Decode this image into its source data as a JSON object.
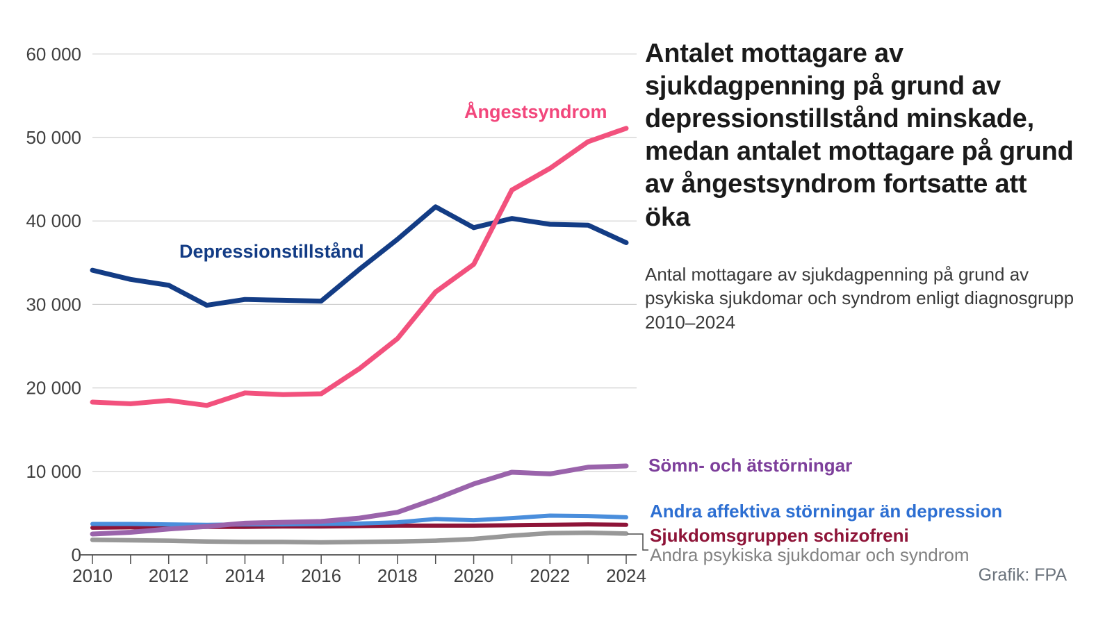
{
  "header": {
    "title": "Antalet mottagare av sjukdagpenning på grund av depressionstillstånd minskade, medan antalet mottagare på grund av ångestsyndrom fortsatte att öka",
    "subtitle": "Antal mottagare av sjukdagpenning på grund av psykiska sjukdomar och syndrom enligt diagnosgrupp 2010–2024"
  },
  "credit": "Grafik: FPA",
  "colors": {
    "grid": "#cfcfcf",
    "axis": "#4d4d4d",
    "tick_text": "#3f3f3f",
    "connector": "#4a4a4a",
    "background": "#ffffff"
  },
  "chart_data": {
    "type": "line",
    "x": [
      2010,
      2011,
      2012,
      2013,
      2014,
      2015,
      2016,
      2017,
      2018,
      2019,
      2020,
      2021,
      2022,
      2023,
      2024
    ],
    "xtick_labels": [
      "2010",
      "2012",
      "2014",
      "2016",
      "2018",
      "2020",
      "2022",
      "2024"
    ],
    "yticks": [
      {
        "value": 60000,
        "label": "60 000"
      },
      {
        "value": 50000,
        "label": "50 000"
      },
      {
        "value": 40000,
        "label": "40 000"
      },
      {
        "value": 30000,
        "label": "30 000"
      },
      {
        "value": 20000,
        "label": "20 000"
      },
      {
        "value": 10000,
        "label": "10 000"
      },
      {
        "value": 0,
        "label": "0"
      }
    ],
    "ylim": [
      0,
      60000
    ],
    "grid": true,
    "legend_position": "right",
    "series": [
      {
        "id": "psykiska",
        "name": "Andra psykiska sjukdomar och syndrom",
        "color": "#989898",
        "label_color": "#828282",
        "width": 6.5,
        "values": [
          1800,
          1750,
          1700,
          1600,
          1550,
          1550,
          1500,
          1550,
          1600,
          1700,
          1900,
          2300,
          2600,
          2650,
          2550
        ]
      },
      {
        "id": "schizofreni",
        "name": "Sjukdomsgruppen schizofreni",
        "color": "#8e1438",
        "label_color": "#8e1438",
        "width": 6,
        "values": [
          3250,
          3300,
          3300,
          3350,
          3350,
          3400,
          3400,
          3450,
          3500,
          3500,
          3500,
          3550,
          3600,
          3650,
          3600
        ]
      },
      {
        "id": "affektiva",
        "name": "Andra affektiva störningar än depression",
        "color": "#4a8edc",
        "label_color": "#2d6fd2",
        "width": 6,
        "values": [
          3700,
          3700,
          3650,
          3600,
          3650,
          3650,
          3700,
          3750,
          3900,
          4300,
          4150,
          4400,
          4700,
          4650,
          4500
        ]
      },
      {
        "id": "somn",
        "name": "Sömn- och ätstörningar",
        "color": "#9a63ab",
        "label_color": "#7d3f9b",
        "width": 7,
        "values": [
          2500,
          2700,
          3100,
          3400,
          3800,
          3900,
          4000,
          4400,
          5100,
          6700,
          8500,
          9900,
          9700,
          10500,
          10650
        ]
      },
      {
        "id": "depression",
        "name": "Depressionstillstånd",
        "color": "#133c85",
        "label_color": "#133c85",
        "width": 7,
        "values": [
          34100,
          33000,
          32300,
          29900,
          30600,
          30500,
          30400,
          34200,
          37800,
          41700,
          39200,
          40300,
          39600,
          39500,
          37400
        ]
      },
      {
        "id": "angest",
        "name": "Ångestsyndrom",
        "color": "#f2517d",
        "label_color": "#f2477c",
        "width": 7,
        "values": [
          18300,
          18100,
          18500,
          17900,
          19400,
          19200,
          19300,
          22300,
          25900,
          31500,
          34800,
          43700,
          46300,
          49500,
          51100
        ]
      }
    ]
  }
}
